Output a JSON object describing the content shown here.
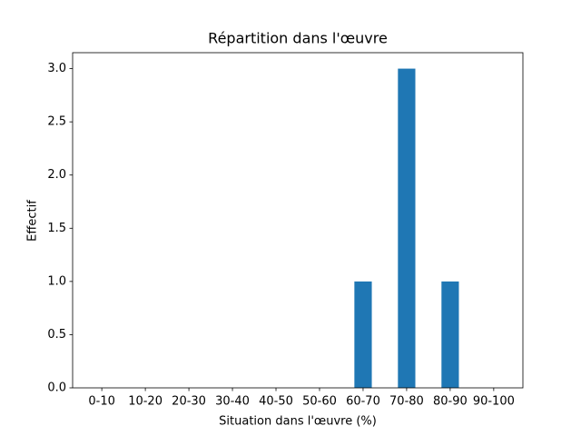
{
  "chart_data": {
    "type": "bar",
    "title": "Répartition dans l'œuvre",
    "x_label": "Situation dans l'œuvre (%)",
    "y_label": "Effectif",
    "categories": [
      "0-10",
      "10-20",
      "20-30",
      "30-40",
      "40-50",
      "50-60",
      "60-70",
      "70-80",
      "80-90",
      "90-100"
    ],
    "values": [
      0,
      0,
      0,
      0,
      0,
      0,
      1,
      3,
      1,
      0
    ],
    "color": "#1f77b4",
    "ylim": [
      0,
      3.15
    ],
    "yticks": [
      {
        "value": 0,
        "label": "0.0"
      },
      0.5,
      {
        "value": 1,
        "label": "1.0"
      },
      1.5,
      {
        "value": 2,
        "label": "2.0"
      },
      2.5,
      {
        "value": 3,
        "label": "3.0"
      }
    ],
    "grid": false
  }
}
